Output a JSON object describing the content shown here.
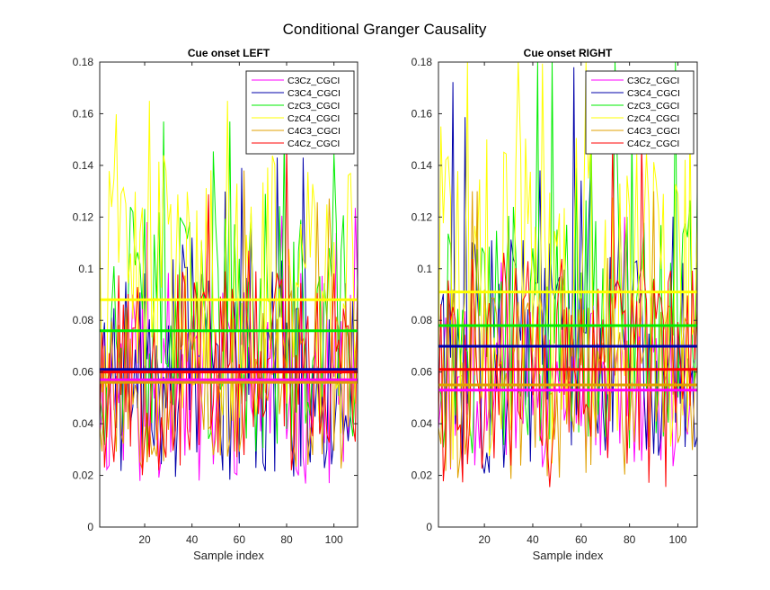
{
  "figure_title": "Conditional Granger Causality",
  "chart_data": [
    {
      "type": "line",
      "title": "Cue onset LEFT",
      "xlabel": "Sample index",
      "ylabel": "",
      "xlim": [
        1,
        110
      ],
      "ylim": [
        0,
        0.18
      ],
      "xticks": [
        20,
        40,
        60,
        80,
        100
      ],
      "yticks": [
        0,
        0.02,
        0.04,
        0.06,
        0.08,
        0.1,
        0.12,
        0.14,
        0.16,
        0.18
      ],
      "ytick_labels": [
        "0",
        "0.02",
        "0.04",
        "0.06",
        "0.08",
        "0.1",
        "0.12",
        "0.14",
        "0.16",
        "0.18"
      ],
      "legend_position": "top-right",
      "grid": false,
      "n_samples": 110,
      "series": [
        {
          "name": "C3Cz_CGCI",
          "color": "#ff00ff",
          "mean": 0.057,
          "min": 0.013,
          "max": 0.126,
          "peak_x": 47,
          "noise_seed": 11
        },
        {
          "name": "C3C4_CGCI",
          "color": "#0000aa",
          "mean": 0.061,
          "min": 0.016,
          "max": 0.143,
          "peak_x": 76,
          "noise_seed": 23
        },
        {
          "name": "CzC3_CGCI",
          "color": "#00ee00",
          "mean": 0.076,
          "min": 0.025,
          "max": 0.157,
          "peak_x": 28,
          "noise_seed": 37
        },
        {
          "name": "CzC4_CGCI",
          "color": "#ffff00",
          "mean": 0.088,
          "min": 0.028,
          "max": 0.165,
          "peak_x": 22,
          "noise_seed": 41
        },
        {
          "name": "C4C3_CGCI",
          "color": "#e0a000",
          "mean": 0.056,
          "min": 0.02,
          "max": 0.138,
          "peak_x": 62,
          "noise_seed": 53
        },
        {
          "name": "C4Cz_CGCI",
          "color": "#ff0000",
          "mean": 0.06,
          "min": 0.018,
          "max": 0.148,
          "peak_x": 80,
          "noise_seed": 67
        }
      ]
    },
    {
      "type": "line",
      "title": "Cue onset RIGHT",
      "xlabel": "Sample index",
      "ylabel": "",
      "xlim": [
        1,
        108
      ],
      "ylim": [
        0,
        0.18
      ],
      "xticks": [
        20,
        40,
        60,
        80,
        100
      ],
      "yticks": [
        0,
        0.02,
        0.04,
        0.06,
        0.08,
        0.1,
        0.12,
        0.14,
        0.16,
        0.18
      ],
      "ytick_labels": [
        "0",
        "0.02",
        "0.04",
        "0.06",
        "0.08",
        "0.1",
        "0.12",
        "0.14",
        "0.16",
        "0.18"
      ],
      "legend_position": "top-right",
      "grid": false,
      "n_samples": 108,
      "series": [
        {
          "name": "C3Cz_CGCI",
          "color": "#ff00ff",
          "mean": 0.053,
          "min": 0.02,
          "max": 0.12,
          "peak_x": 30,
          "noise_seed": 71
        },
        {
          "name": "C3C4_CGCI",
          "color": "#0000aa",
          "mean": 0.07,
          "min": 0.017,
          "max": 0.178,
          "peak_x": 57,
          "noise_seed": 83
        },
        {
          "name": "CzC3_CGCI",
          "color": "#00ee00",
          "mean": 0.078,
          "min": 0.025,
          "max": 0.18,
          "peak_x": 74,
          "noise_seed": 97
        },
        {
          "name": "CzC4_CGCI",
          "color": "#ffff00",
          "mean": 0.091,
          "min": 0.02,
          "max": 0.18,
          "peak_x": 13,
          "noise_seed": 101
        },
        {
          "name": "C4C3_CGCI",
          "color": "#e0a000",
          "mean": 0.055,
          "min": 0.016,
          "max": 0.13,
          "peak_x": 90,
          "noise_seed": 113
        },
        {
          "name": "C4Cz_CGCI",
          "color": "#ff0000",
          "mean": 0.061,
          "min": 0.013,
          "max": 0.15,
          "peak_x": 73,
          "noise_seed": 127
        }
      ]
    }
  ]
}
